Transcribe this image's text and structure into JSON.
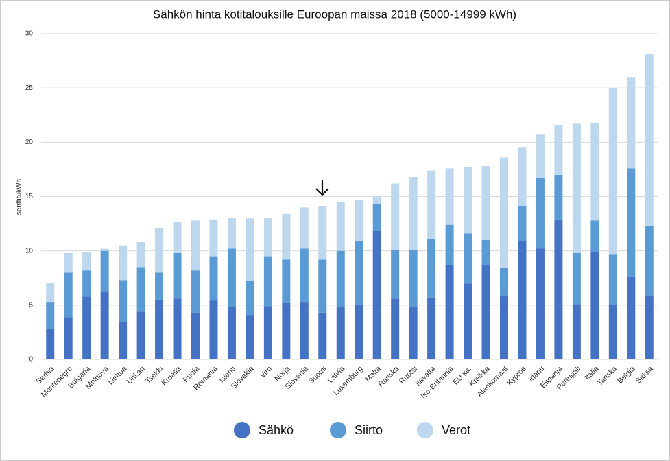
{
  "chart_data": {
    "type": "stacked_bar",
    "title": "Sähkön hinta kotitalouksille Euroopan maissa 2018 (5000-14999 kWh)",
    "y_label": "senttiä/kWh",
    "categories": [
      "Serbia",
      "Montenegro",
      "Bulgaria",
      "Moldova",
      "Liettua",
      "Unkari",
      "Tsekki",
      "Kroatia",
      "Puola",
      "Romania",
      "Islanti",
      "Slovakia",
      "Viro",
      "Norja",
      "Slovenia",
      "Suomi",
      "Latvia",
      "Luxemburg",
      "Malta",
      "Ranska",
      "Ruotsi",
      "Itävalta",
      "Iso-Britannia",
      "EU ka.",
      "Kreikka",
      "Alankomaat",
      "Kypros",
      "Irlanti",
      "Espanja",
      "Portugali",
      "Italia",
      "Tanska",
      "Belgia",
      "Saksa"
    ],
    "series": [
      {
        "name": "Sähkö",
        "color": "#4472c4",
        "values": [
          2.8,
          3.9,
          5.8,
          6.3,
          3.5,
          4.4,
          5.5,
          5.6,
          4.3,
          5.4,
          4.8,
          4.1,
          4.9,
          5.2,
          5.3,
          4.3,
          4.8,
          5.0,
          11.9,
          5.6,
          4.8,
          5.7,
          8.7,
          7.0,
          8.7,
          5.9,
          10.9,
          10.2,
          12.9,
          5.1,
          9.9,
          5.0,
          7.6,
          5.9
        ]
      },
      {
        "name": "Siirto",
        "color": "#5b9bd5",
        "values": [
          2.5,
          4.1,
          2.4,
          3.7,
          3.8,
          4.1,
          2.5,
          4.2,
          3.9,
          4.1,
          5.4,
          3.1,
          4.6,
          4.0,
          4.9,
          4.9,
          5.2,
          5.9,
          2.4,
          4.5,
          5.3,
          5.4,
          3.7,
          4.6,
          2.3,
          2.5,
          3.2,
          6.5,
          4.1,
          4.7,
          2.9,
          4.7,
          10.0,
          6.4
        ]
      },
      {
        "name": "Verot",
        "color": "#bdd7ee",
        "values": [
          1.7,
          1.8,
          1.7,
          0.2,
          3.2,
          2.3,
          4.1,
          2.9,
          4.6,
          3.4,
          2.8,
          5.8,
          3.5,
          4.2,
          3.8,
          4.9,
          4.5,
          3.8,
          0.7,
          6.1,
          6.7,
          6.3,
          5.2,
          6.1,
          6.8,
          10.2,
          5.4,
          4.0,
          4.6,
          11.9,
          9.0,
          15.3,
          8.4,
          15.8
        ]
      }
    ],
    "ylim": [
      0,
      30
    ],
    "yticks": [
      0,
      5,
      10,
      15,
      20,
      25,
      30
    ],
    "grid": true
  }
}
